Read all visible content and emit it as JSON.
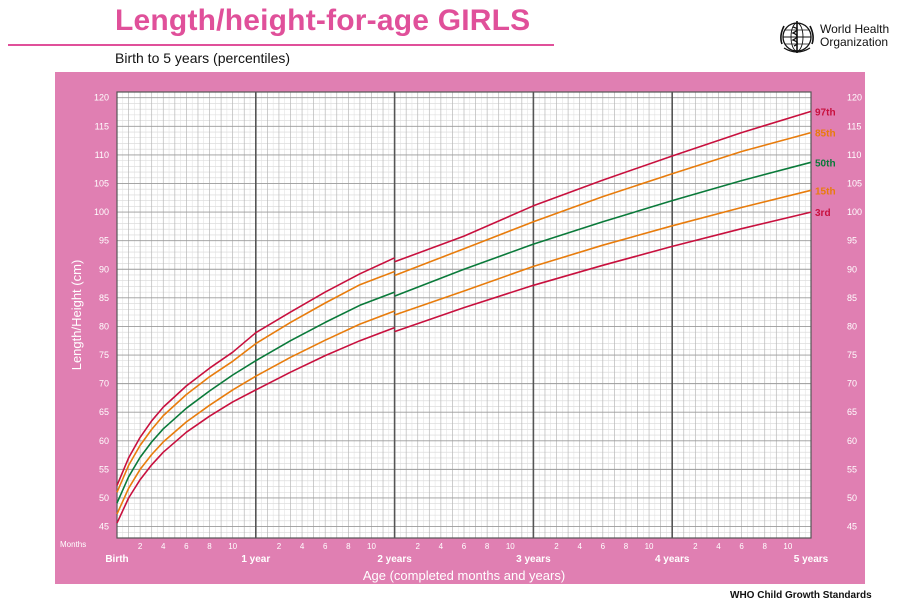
{
  "header": {
    "title": "Length/height-for-age GIRLS",
    "subtitle": "Birth to 5 years (percentiles)",
    "logo_line1": "World Health",
    "logo_line2": "Organization"
  },
  "footer": {
    "text": "WHO Child Growth Standards"
  },
  "colors": {
    "panel": "#e07fb2",
    "grid_bg": "#ffffff",
    "p3_97": "#c8103e",
    "p15_85": "#e87c0c",
    "p50": "#0a7a3a"
  },
  "chart_data": {
    "type": "line",
    "title": "Length/height-for-age GIRLS",
    "subtitle": "Birth to 5 years (percentiles)",
    "xlabel": "Age (completed months and years)",
    "ylabel": "Length/Height (cm)",
    "x_unit_label": "Months",
    "xlim": [
      0,
      60
    ],
    "ylim": [
      43,
      121
    ],
    "yticks": [
      45,
      50,
      55,
      60,
      65,
      70,
      75,
      80,
      85,
      90,
      95,
      100,
      105,
      110,
      115,
      120
    ],
    "month_ticks": [
      2,
      4,
      6,
      8,
      10
    ],
    "year_labels": [
      {
        "x": 0,
        "label": "Birth"
      },
      {
        "x": 12,
        "label": "1 year"
      },
      {
        "x": 24,
        "label": "2 years"
      },
      {
        "x": 36,
        "label": "3 years"
      },
      {
        "x": 48,
        "label": "4 years"
      },
      {
        "x": 60,
        "label": "5 years"
      }
    ],
    "grid": true,
    "x": [
      0,
      1,
      2,
      3,
      4,
      6,
      8,
      10,
      12,
      15,
      18,
      21,
      24,
      30,
      36,
      42,
      48,
      54,
      60
    ],
    "series": [
      {
        "name": "97th",
        "color": "#c8103e",
        "values": [
          52.2,
          57.0,
          60.6,
          63.5,
          65.9,
          69.6,
          72.7,
          75.5,
          78.9,
          82.5,
          86.0,
          89.2,
          92.0,
          96.5,
          101.8,
          106.3,
          110.5,
          114.6,
          118.3
        ],
        "values_after_24": [
          91.8
        ]
      },
      {
        "name": "85th",
        "color": "#e87c0c",
        "values": [
          51.0,
          55.7,
          59.2,
          62.0,
          64.4,
          68.1,
          71.2,
          73.9,
          77.0,
          80.7,
          84.1,
          87.3,
          89.6,
          94.3,
          99.0,
          103.4,
          107.4,
          111.3,
          114.6
        ]
      },
      {
        "name": "50th",
        "color": "#0a7a3a",
        "values": [
          49.1,
          53.7,
          57.1,
          59.8,
          62.1,
          65.7,
          68.7,
          71.5,
          74.0,
          77.5,
          80.7,
          83.7,
          86.0,
          90.7,
          95.1,
          99.0,
          102.7,
          106.2,
          109.4
        ]
      },
      {
        "name": "15th",
        "color": "#e87c0c",
        "values": [
          47.2,
          51.7,
          55.0,
          57.6,
          59.8,
          63.3,
          66.2,
          68.9,
          71.3,
          74.6,
          77.6,
          80.4,
          82.7,
          86.9,
          91.2,
          94.9,
          98.3,
          101.5,
          104.5
        ]
      },
      {
        "name": "3rd",
        "color": "#c8103e",
        "values": [
          45.6,
          50.0,
          53.2,
          55.8,
          58.0,
          61.5,
          64.3,
          66.8,
          68.9,
          72.0,
          74.9,
          77.5,
          79.8,
          84.0,
          87.9,
          91.4,
          94.7,
          97.8,
          100.7
        ]
      }
    ]
  }
}
